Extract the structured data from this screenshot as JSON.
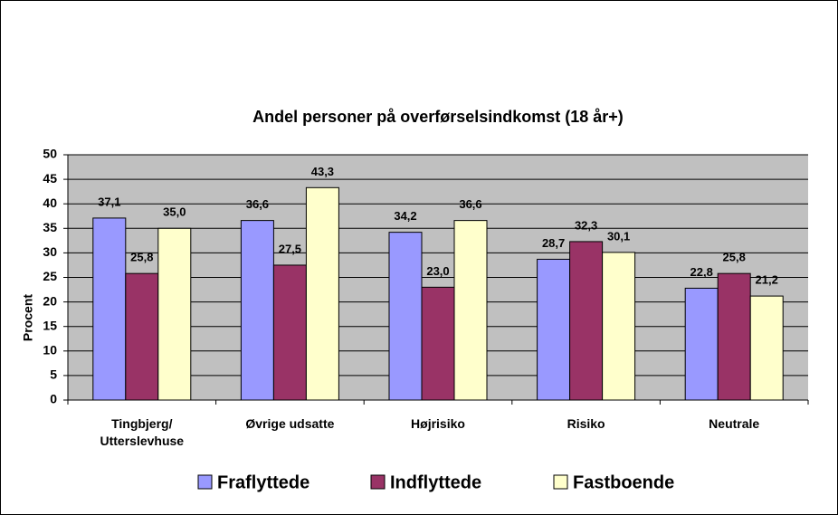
{
  "chart_data": {
    "type": "bar",
    "title": "Andel personer på overførselsindkomst (18 år+)",
    "y_label": "Procent",
    "categories": [
      "Tingbjerg/ Utterslevhuse",
      "Øvrige udsatte",
      "Højrisiko",
      "Risiko",
      "Neutrale"
    ],
    "series": [
      {
        "name": "Fraflyttede",
        "color": "#9999ff",
        "values": [
          37.1,
          36.6,
          34.2,
          28.7,
          22.8
        ],
        "value_labels": [
          "37,1",
          "36,6",
          "34,2",
          "28,7",
          "22,8"
        ]
      },
      {
        "name": "Indflyttede",
        "color": "#993366",
        "values": [
          25.8,
          27.5,
          23.0,
          32.3,
          25.8
        ],
        "value_labels": [
          "25,8",
          "27,5",
          "23,0",
          "32,3",
          "25,8"
        ]
      },
      {
        "name": "Fastboende",
        "color": "#ffffcc",
        "values": [
          35.0,
          43.3,
          36.6,
          30.1,
          21.2
        ],
        "value_labels": [
          "35,0",
          "43,3",
          "36,6",
          "30,1",
          "21,2"
        ]
      }
    ],
    "ylim": [
      0,
      50
    ],
    "yticks": [
      0,
      5,
      10,
      15,
      20,
      25,
      30,
      35,
      40,
      45,
      50
    ],
    "grid": true,
    "plot_background": "#c0c0c0",
    "legend": "bottom"
  }
}
